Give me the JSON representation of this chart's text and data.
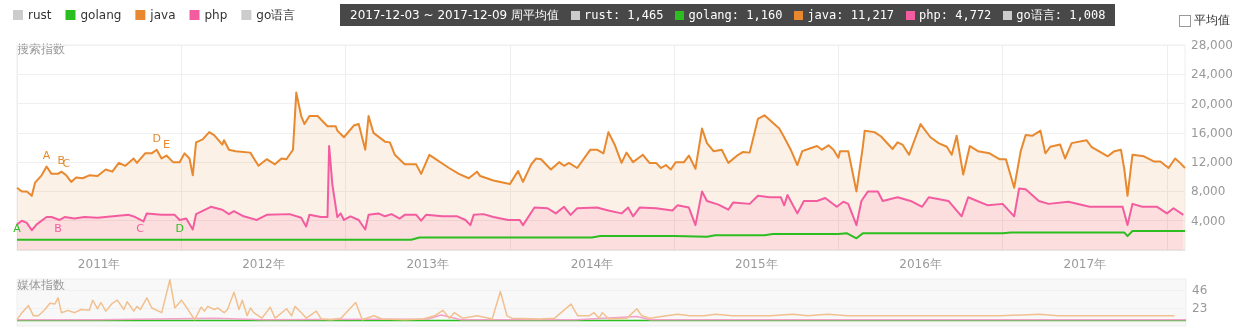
{
  "chart_data": [
    {
      "type": "area",
      "ylabel": "搜索指数",
      "legend": "top left",
      "grid": true,
      "xlim": [
        2011,
        2018.11
      ],
      "xticks": [
        {
          "value": 2011,
          "label": null
        },
        {
          "value": 2011.5,
          "label": "2011年"
        },
        {
          "value": 2012,
          "label": null
        },
        {
          "value": 2012.5,
          "label": "2012年"
        },
        {
          "value": 2013,
          "label": null
        },
        {
          "value": 2013.5,
          "label": "2013年"
        },
        {
          "value": 2014,
          "label": null
        },
        {
          "value": 2014.5,
          "label": "2014年"
        },
        {
          "value": 2015,
          "label": null
        },
        {
          "value": 2015.5,
          "label": "2015年"
        },
        {
          "value": 2016,
          "label": null
        },
        {
          "value": 2016.5,
          "label": "2016年"
        },
        {
          "value": 2017,
          "label": null
        },
        {
          "value": 2017.5,
          "label": "2017年"
        },
        {
          "value": 2018,
          "label": null
        }
      ],
      "ylim": [
        0,
        28000
      ],
      "yticks": [
        {
          "value": 4000,
          "label": "4,000"
        },
        {
          "value": 8000,
          "label": "8,000"
        },
        {
          "value": 12000,
          "label": "12,000"
        },
        {
          "value": 16000,
          "label": "16,000"
        },
        {
          "value": 20000,
          "label": "20,000"
        },
        {
          "value": 24000,
          "label": "24,000"
        },
        {
          "value": 28000,
          "label": "28,000"
        }
      ],
      "series": [
        {
          "name": "rust",
          "color": "#cccccc"
        },
        {
          "name": "golang",
          "color": "#2cbe21",
          "type": "line",
          "x": [
            2011,
            2012,
            2013,
            2013.4,
            2013.45,
            2014,
            2014.5,
            2014.55,
            2015,
            2015.2,
            2015.25,
            2015.55,
            2015.6,
            2016,
            2016.05,
            2016.11,
            2016.15,
            2016.7,
            2017,
            2017.05,
            2017.74,
            2017.76,
            2017.79,
            2018.11
          ],
          "values": [
            1400,
            1400,
            1400,
            1400,
            1700,
            1700,
            1700,
            1900,
            1900,
            1800,
            2000,
            2000,
            2200,
            2200,
            2300,
            1600,
            2300,
            2300,
            2300,
            2400,
            2400,
            1900,
            2600,
            2600
          ]
        },
        {
          "name": "java",
          "color": "#e8892f",
          "x": [
            2011,
            2011.03,
            2011.06,
            2011.09,
            2011.11,
            2011.15,
            2011.18,
            2011.21,
            2011.25,
            2011.27,
            2011.3,
            2011.33,
            2011.36,
            2011.4,
            2011.44,
            2011.49,
            2011.54,
            2011.58,
            2011.62,
            2011.66,
            2011.71,
            2011.73,
            2011.78,
            2011.82,
            2011.85,
            2011.88,
            2011.91,
            2011.95,
            2011.99,
            2012.02,
            2012.05,
            2012.07,
            2012.09,
            2012.13,
            2012.17,
            2012.2,
            2012.25,
            2012.26,
            2012.29,
            2012.33,
            2012.42,
            2012.47,
            2012.52,
            2012.57,
            2012.61,
            2012.64,
            2012.68,
            2012.7,
            2012.73,
            2012.75,
            2012.78,
            2012.83,
            2012.89,
            2012.94,
            2012.95,
            2012.99,
            2013.05,
            2013.08,
            2013.12,
            2013.14,
            2013.17,
            2013.24,
            2013.27,
            2013.3,
            2013.36,
            2013.43,
            2013.46,
            2013.51,
            2013.63,
            2013.69,
            2013.75,
            2013.8,
            2013.82,
            2013.9,
            2014,
            2014.05,
            2014.08,
            2014.13,
            2014.16,
            2014.19,
            2014.25,
            2014.3,
            2014.33,
            2014.36,
            2014.41,
            2014.49,
            2014.53,
            2014.57,
            2014.6,
            2014.64,
            2014.68,
            2014.71,
            2014.75,
            2014.81,
            2014.85,
            2014.89,
            2014.92,
            2014.95,
            2014.98,
            2015.01,
            2015.06,
            2015.09,
            2015.13,
            2015.17,
            2015.2,
            2015.24,
            2015.29,
            2015.33,
            2015.39,
            2015.42,
            2015.46,
            2015.51,
            2015.55,
            2015.64,
            2015.67,
            2015.71,
            2015.75,
            2015.78,
            2015.83,
            2015.87,
            2015.9,
            2015.94,
            2015.97,
            2016,
            2016.01,
            2016.06,
            2016.11,
            2016.15,
            2016.16,
            2016.22,
            2016.26,
            2016.33,
            2016.36,
            2016.39,
            2016.43,
            2016.47,
            2016.5,
            2016.56,
            2016.61,
            2016.66,
            2016.69,
            2016.72,
            2016.76,
            2016.8,
            2016.85,
            2016.92,
            2016.98,
            2017.02,
            2017.07,
            2017.11,
            2017.14,
            2017.18,
            2017.23,
            2017.26,
            2017.29,
            2017.35,
            2017.38,
            2017.42,
            2017.51,
            2017.54,
            2017.64,
            2017.68,
            2017.72,
            2017.74,
            2017.76,
            2017.79,
            2017.86,
            2017.92,
            2017.96,
            2018.01,
            2018.05,
            2018.08,
            2018.11
          ],
          "values": [
            8500,
            8000,
            8000,
            7400,
            9200,
            10200,
            11400,
            10400,
            10400,
            10700,
            10200,
            9300,
            9900,
            9800,
            10200,
            10100,
            11000,
            10700,
            11900,
            11500,
            12500,
            11900,
            13200,
            13200,
            13700,
            12500,
            12900,
            12000,
            12000,
            13200,
            12500,
            10200,
            14700,
            15100,
            16100,
            15700,
            14400,
            15000,
            13700,
            13500,
            13300,
            11500,
            12400,
            11700,
            12500,
            12400,
            13700,
            21500,
            18300,
            17200,
            18300,
            18300,
            16900,
            16900,
            16300,
            15400,
            17000,
            17200,
            13700,
            18300,
            16000,
            14800,
            14700,
            13000,
            11700,
            11700,
            10400,
            13000,
            11200,
            10400,
            9800,
            10700,
            10100,
            9500,
            9000,
            10800,
            9300,
            11700,
            12500,
            12400,
            11000,
            12000,
            11500,
            11900,
            11200,
            13700,
            13700,
            13200,
            16100,
            14300,
            11900,
            13300,
            12000,
            13000,
            11900,
            11900,
            11200,
            11600,
            11000,
            12000,
            12000,
            12900,
            11100,
            16600,
            14600,
            13500,
            13700,
            11900,
            13000,
            13400,
            13300,
            17900,
            18400,
            16600,
            15400,
            13700,
            11600,
            13500,
            13900,
            14200,
            13700,
            14300,
            13700,
            12600,
            13500,
            13500,
            8000,
            14300,
            16300,
            16100,
            15500,
            13800,
            14700,
            14400,
            13000,
            15400,
            17200,
            15400,
            14600,
            14100,
            13000,
            15600,
            10300,
            14200,
            13500,
            13200,
            12400,
            12400,
            8500,
            13500,
            15700,
            15600,
            16300,
            13200,
            14100,
            14400,
            12500,
            14600,
            15000,
            14100,
            12800,
            13500,
            13700,
            11100,
            7400,
            13000,
            12800,
            12100,
            12100,
            11200,
            12500,
            11900,
            11200
          ]
        },
        {
          "name": "php",
          "color": "#f45ca0",
          "x": [
            2011,
            2011.03,
            2011.06,
            2011.09,
            2011.12,
            2011.18,
            2011.21,
            2011.26,
            2011.29,
            2011.35,
            2011.41,
            2011.49,
            2011.68,
            2011.72,
            2011.77,
            2011.79,
            2011.88,
            2011.96,
            2011.99,
            2012.03,
            2012.07,
            2012.09,
            2012.18,
            2012.25,
            2012.29,
            2012.32,
            2012.38,
            2012.46,
            2012.52,
            2012.66,
            2012.73,
            2012.76,
            2012.78,
            2012.85,
            2012.89,
            2012.9,
            2012.92,
            2012.95,
            2012.97,
            2012.99,
            2013.03,
            2013.08,
            2013.12,
            2013.14,
            2013.2,
            2013.24,
            2013.28,
            2013.33,
            2013.36,
            2013.43,
            2013.46,
            2013.49,
            2013.59,
            2013.68,
            2013.73,
            2013.76,
            2013.78,
            2013.84,
            2013.9,
            2013.99,
            2014.06,
            2014.08,
            2014.15,
            2014.23,
            2014.28,
            2014.33,
            2014.37,
            2014.41,
            2014.53,
            2014.6,
            2014.68,
            2014.72,
            2014.75,
            2014.79,
            2014.89,
            2014.99,
            2015.02,
            2015.09,
            2015.13,
            2015.17,
            2015.2,
            2015.27,
            2015.33,
            2015.36,
            2015.46,
            2015.51,
            2015.58,
            2015.65,
            2015.67,
            2015.69,
            2015.75,
            2015.79,
            2015.83,
            2015.87,
            2015.92,
            2015.99,
            2016.03,
            2016.06,
            2016.11,
            2016.14,
            2016.18,
            2016.24,
            2016.27,
            2016.36,
            2016.44,
            2016.51,
            2016.55,
            2016.67,
            2016.75,
            2016.79,
            2016.91,
            2017,
            2017.07,
            2017.1,
            2017.14,
            2017.22,
            2017.28,
            2017.4,
            2017.53,
            2017.73,
            2017.76,
            2017.79,
            2017.85,
            2017.94,
            2018,
            2018.04,
            2018.1
          ],
          "values": [
            3500,
            4000,
            3700,
            2700,
            3500,
            4500,
            4500,
            4100,
            4500,
            4300,
            4500,
            4400,
            4800,
            4500,
            3900,
            5000,
            4800,
            4800,
            4100,
            4300,
            2800,
            4900,
            5900,
            5500,
            4900,
            5300,
            4600,
            4100,
            4800,
            4900,
            4400,
            3200,
            4800,
            4500,
            4500,
            14200,
            8900,
            4500,
            5000,
            4100,
            4600,
            4100,
            2800,
            4800,
            5000,
            4600,
            4900,
            4300,
            4800,
            4800,
            4000,
            4800,
            4600,
            4600,
            4100,
            3400,
            4800,
            4900,
            4500,
            4100,
            4100,
            3400,
            5800,
            5700,
            5000,
            5900,
            4800,
            5700,
            5800,
            5400,
            5000,
            5800,
            4600,
            5800,
            5700,
            5400,
            6100,
            5800,
            3400,
            8000,
            6700,
            6200,
            5500,
            6500,
            6300,
            7400,
            7200,
            7200,
            6100,
            7500,
            5000,
            6700,
            6700,
            6700,
            7100,
            5900,
            6600,
            6300,
            3400,
            6700,
            8000,
            8000,
            6700,
            7200,
            6700,
            5900,
            7200,
            6700,
            4600,
            7200,
            6100,
            6300,
            4600,
            8400,
            8300,
            6700,
            6300,
            6600,
            5900,
            5900,
            3400,
            6300,
            5900,
            5900,
            5000,
            5700,
            4800
          ]
        },
        {
          "name": "go语言",
          "color": "#cccccc"
        }
      ],
      "annotations": [
        {
          "text": "A",
          "x": 2011.18,
          "y": 11400
        },
        {
          "text": "B",
          "x": 2011.27,
          "y": 10700
        },
        {
          "text": "C",
          "x": 2011.3,
          "y": 10200
        },
        {
          "text": "D",
          "x": 2011.85,
          "y": 13700
        },
        {
          "text": "E",
          "x": 2011.91,
          "y": 12900
        },
        {
          "text": "A",
          "x": 2011,
          "y": 1400
        },
        {
          "text": "B",
          "x": 2011.25,
          "y": 1400
        },
        {
          "text": "C",
          "x": 2011.75,
          "y": 1400
        },
        {
          "text": "D",
          "x": 2011.99,
          "y": 1400
        },
        "平均值",
        "2017-12-03 ~ 2017-12-09 周平均值",
        "rust:     1,465",
        "golang:   1,160",
        "java:    11,217",
        "php:      4,772",
        "go语言:   1,008"
      ]
    },
    {
      "type": "line",
      "ylabel": "媒体指数",
      "grid": "y",
      "tick_labels": "y",
      "xlim": [
        2011,
        2018.11
      ],
      "ylim": [
        0,
        60
      ],
      "yticks": [
        23,
        46
      ],
      "series": [
        {
          "color": "#2cbe21",
          "x": [
            2011,
            2018.11
          ],
          "values": [
            7,
            7
          ]
        },
        {
          "color": "#f4a0c8",
          "x": [
            2011,
            2011.5,
            2012.2,
            2012.5,
            2013.5,
            2013.58,
            2013.7,
            2014.4,
            2014.77,
            2014.85,
            2018.11
          ],
          "values": [
            8,
            8,
            10,
            8,
            9,
            14,
            8,
            8,
            12,
            8,
            8
          ]
        },
        {
          "color": "#f2c08f",
          "x": [
            2011,
            2011.03,
            2011.07,
            2011.1,
            2011.13,
            2011.17,
            2011.2,
            2011.23,
            2011.25,
            2011.27,
            2011.31,
            2011.35,
            2011.39,
            2011.44,
            2011.46,
            2011.49,
            2011.51,
            2011.54,
            2011.58,
            2011.61,
            2011.65,
            2011.67,
            2011.71,
            2011.73,
            2011.75,
            2011.79,
            2011.82,
            2011.88,
            2011.93,
            2011.96,
            2012,
            2012.04,
            2012.08,
            2012.12,
            2012.14,
            2012.16,
            2012.2,
            2012.22,
            2012.26,
            2012.28,
            2012.32,
            2012.35,
            2012.37,
            2012.4,
            2012.42,
            2012.44,
            2012.49,
            2012.54,
            2012.57,
            2012.64,
            2012.67,
            2012.69,
            2012.73,
            2012.76,
            2012.82,
            2012.85,
            2012.91,
            2012.97,
            2013.06,
            2013.1,
            2013.17,
            2013.22,
            2013.36,
            2013.47,
            2013.54,
            2013.59,
            2013.63,
            2013.66,
            2013.71,
            2013.8,
            2013.89,
            2013.94,
            2013.98,
            2014.01,
            2014.18,
            2014.27,
            2014.37,
            2014.41,
            2014.48,
            2014.51,
            2014.54,
            2014.56,
            2014.6,
            2014.71,
            2014.77,
            2014.8,
            2014.85,
            2014.95,
            2015.02,
            2015.09,
            2015.18,
            2015.25,
            2015.35,
            2015.46,
            2015.58,
            2015.72,
            2015.81,
            2015.93,
            2016.05,
            2016.19,
            2016.26,
            2016.4,
            2016.63,
            2016.75,
            2016.98,
            2017.22,
            2017.33,
            2017.52,
            2017.68,
            2017.8,
            2017.92,
            2018.04
          ],
          "values": [
            8,
            17,
            26,
            13,
            13,
            21,
            29,
            28,
            36,
            17,
            20,
            17,
            21,
            20,
            33,
            22,
            30,
            19,
            29,
            33,
            21,
            31,
            19,
            25,
            21,
            36,
            23,
            17,
            59,
            23,
            33,
            21,
            8,
            24,
            19,
            25,
            21,
            23,
            17,
            21,
            43,
            21,
            33,
            13,
            23,
            17,
            10,
            24,
            10,
            22,
            13,
            25,
            17,
            10,
            19,
            9,
            8,
            10,
            30,
            8,
            13,
            9,
            8,
            9,
            13,
            20,
            10,
            17,
            10,
            13,
            9,
            44,
            13,
            10,
            9,
            10,
            28,
            13,
            13,
            17,
            10,
            17,
            9,
            10,
            22,
            13,
            10,
            13,
            15,
            13,
            13,
            15,
            13,
            13,
            13,
            15,
            13,
            15,
            13,
            13,
            13,
            13,
            13,
            13,
            13,
            15,
            13,
            13,
            13,
            13,
            13,
            13
          ]
        }
      ]
    }
  ]
}
